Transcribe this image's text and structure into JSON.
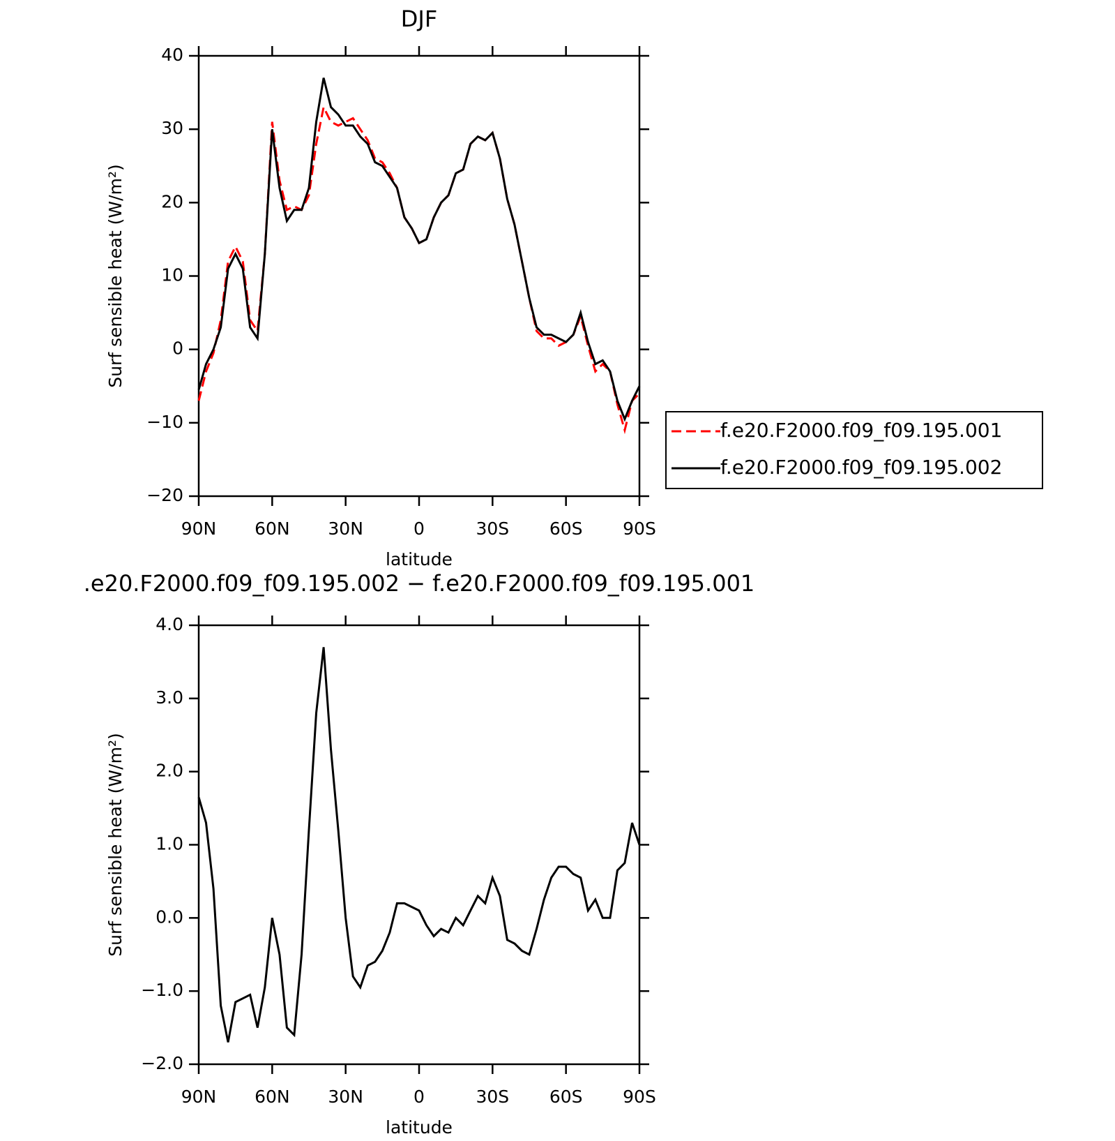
{
  "chart_data": [
    {
      "type": "line",
      "title": "DJF",
      "xlabel": "latitude",
      "ylabel": "Surf sensible heat (W/m²)",
      "x": [
        90,
        87,
        84,
        81,
        78,
        75,
        72,
        69,
        66,
        63,
        60,
        57,
        54,
        51,
        48,
        45,
        42,
        39,
        36,
        33,
        30,
        27,
        24,
        21,
        18,
        15,
        12,
        9,
        6,
        3,
        0,
        -3,
        -6,
        -9,
        -12,
        -15,
        -18,
        -21,
        -24,
        -27,
        -30,
        -33,
        -36,
        -39,
        -42,
        -45,
        -48,
        -51,
        -54,
        -57,
        -60,
        -63,
        -66,
        -69,
        -72,
        -75,
        -78,
        -81,
        -84,
        -87,
        -90
      ],
      "series": [
        {
          "name": "f.e20.F2000.f09_f09.195.001",
          "color": "#ff0000",
          "dash": true,
          "values": [
            -7,
            -3,
            -0.5,
            4,
            12,
            14,
            12,
            4,
            2.5,
            13,
            31,
            23,
            19,
            19.5,
            19,
            21,
            28,
            33,
            31,
            30.5,
            31,
            31.5,
            30,
            28.5,
            26,
            25.5,
            24,
            22,
            18,
            16.5,
            14.5,
            15,
            18,
            20,
            21,
            24,
            24.5,
            28,
            29,
            28.5,
            29.5,
            26,
            20.5,
            17,
            12,
            7,
            2.5,
            1.5,
            1.5,
            0.5,
            1,
            2,
            4.5,
            0.5,
            -3,
            -2,
            -3,
            -7.5,
            -11,
            -7,
            -6
          ]
        },
        {
          "name": "f.e20.F2000.f09_f09.195.002",
          "color": "#000000",
          "dash": false,
          "values": [
            -5.5,
            -2,
            0,
            3,
            11,
            13,
            11,
            3,
            1.5,
            13,
            30,
            22,
            17.5,
            19,
            19,
            22,
            31,
            37,
            33,
            32,
            30.5,
            30.5,
            29,
            28,
            25.5,
            25,
            23.5,
            22,
            18,
            16.5,
            14.5,
            15,
            18,
            20,
            21,
            24,
            24.5,
            28,
            29,
            28.5,
            29.5,
            26,
            20.5,
            17,
            12,
            7,
            3,
            2,
            2,
            1.5,
            1,
            2,
            5,
            1,
            -2,
            -1.5,
            -3,
            -7,
            -9.5,
            -7,
            -5
          ]
        }
      ],
      "xlim": [
        90,
        -90
      ],
      "xticks": [
        {
          "value": 90,
          "label": "90N"
        },
        {
          "value": 60,
          "label": "60N"
        },
        {
          "value": 30,
          "label": "30N"
        },
        0,
        {
          "value": -30,
          "label": "30S"
        },
        {
          "value": -60,
          "label": "60S"
        },
        {
          "value": -90,
          "label": "90S"
        }
      ],
      "ylim": [
        -20,
        40
      ],
      "yticks": [
        {
          "value": -20,
          "label": "−20"
        },
        {
          "value": -10,
          "label": "−10"
        },
        0,
        10,
        20,
        30,
        40
      ],
      "legend": "right"
    },
    {
      "type": "line",
      "title": ".e20.F2000.f09_f09.195.002 − f.e20.F2000.f09_f09.195.001",
      "xlabel": "latitude",
      "ylabel": "Surf sensible heat (W/m²)",
      "x": [
        90,
        87,
        84,
        81,
        78,
        75,
        72,
        69,
        66,
        63,
        60,
        57,
        54,
        51,
        48,
        45,
        42,
        39,
        36,
        33,
        30,
        27,
        24,
        21,
        18,
        15,
        12,
        9,
        6,
        3,
        0,
        -3,
        -6,
        -9,
        -12,
        -15,
        -18,
        -21,
        -24,
        -27,
        -30,
        -33,
        -36,
        -39,
        -42,
        -45,
        -48,
        -51,
        -54,
        -57,
        -60,
        -63,
        -66,
        -69,
        -72,
        -75,
        -78,
        -81,
        -84,
        -87,
        -90
      ],
      "values": [
        1.65,
        1.3,
        0.4,
        -1.2,
        -1.7,
        -1.15,
        -1.1,
        -1.05,
        -1.5,
        -0.95,
        0,
        -0.5,
        -1.5,
        -1.6,
        -0.5,
        1.2,
        2.8,
        3.7,
        2.3,
        1.2,
        0,
        -0.8,
        -0.95,
        -0.65,
        -0.6,
        -0.45,
        -0.2,
        0.2,
        0.2,
        0.15,
        0.1,
        -0.1,
        -0.25,
        -0.15,
        -0.2,
        0,
        -0.1,
        0.1,
        0.3,
        0.2,
        0.55,
        0.3,
        -0.3,
        -0.35,
        -0.45,
        -0.5,
        -0.15,
        0.25,
        0.55,
        0.7,
        0.7,
        0.6,
        0.55,
        0.1,
        0.25,
        0,
        0,
        0.65,
        0.75,
        1.3,
        1
      ],
      "color": "#000000",
      "xlim": [
        90,
        -90
      ],
      "xticks": [
        {
          "value": 90,
          "label": "90N"
        },
        {
          "value": 60,
          "label": "60N"
        },
        {
          "value": 30,
          "label": "30N"
        },
        0,
        {
          "value": -30,
          "label": "30S"
        },
        {
          "value": -60,
          "label": "60S"
        },
        {
          "value": -90,
          "label": "90S"
        }
      ],
      "ylim": [
        -2,
        4
      ],
      "yticks": [
        {
          "value": -2,
          "label": "−2.0"
        },
        {
          "value": -1,
          "label": "−1.0"
        },
        {
          "value": 0,
          "label": "0.0"
        },
        {
          "value": 1,
          "label": "1.0"
        },
        {
          "value": 2,
          "label": "2.0"
        },
        {
          "value": 3,
          "label": "3.0"
        },
        {
          "value": 4,
          "label": "4.0"
        }
      ]
    }
  ]
}
